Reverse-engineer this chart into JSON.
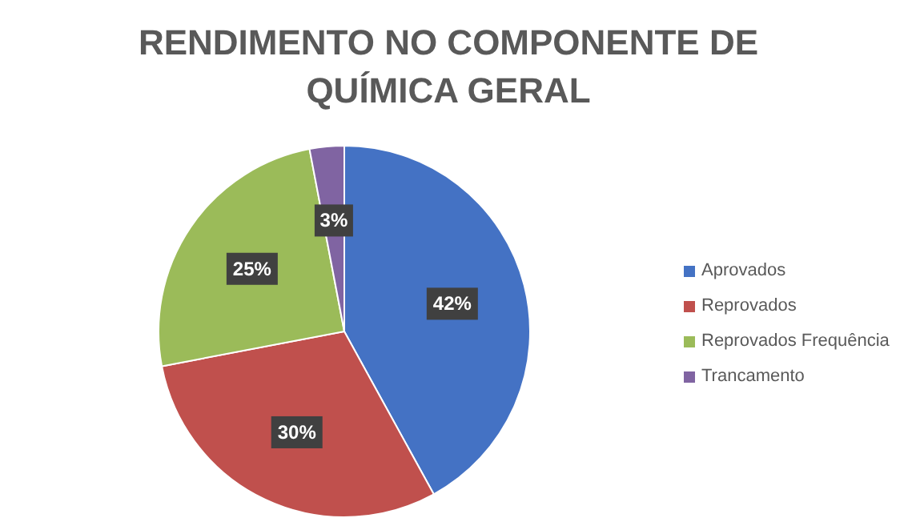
{
  "chart_data": {
    "type": "pie",
    "title": "RENDIMENTO NO COMPONENTE DE QUÍMICA GERAL",
    "categories": [
      "Aprovados",
      "Reprovados",
      "Reprovados Frequência",
      "Trancamento"
    ],
    "values": [
      42,
      30,
      25,
      3
    ],
    "value_labels": [
      "42%",
      "30%",
      "25%",
      "3%"
    ],
    "colors": [
      "#4472c4",
      "#c0504d",
      "#9bbb59",
      "#8064a2"
    ],
    "legend": "right"
  }
}
